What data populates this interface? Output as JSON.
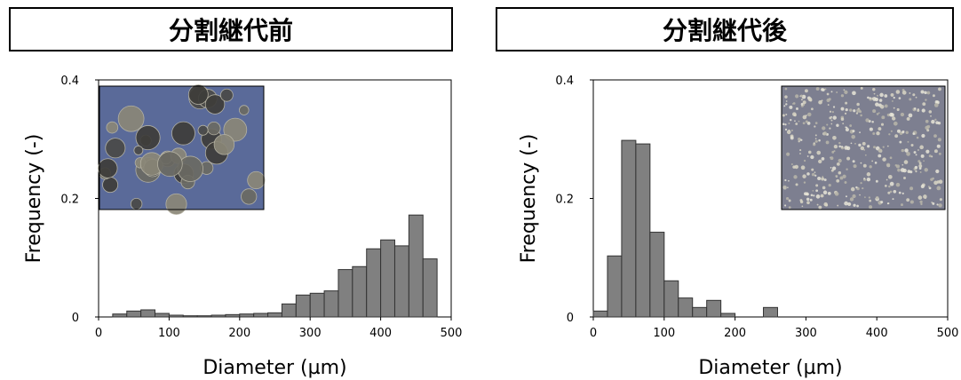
{
  "panels": [
    {
      "title": "分割継代前"
    },
    {
      "title": "分割継代後"
    }
  ],
  "colors": {
    "bar_fill": "#808080",
    "bar_stroke": "#333333",
    "photo_before": "#5a6a99",
    "photo_after": "#7d7f90"
  },
  "chart_data": [
    {
      "type": "bar",
      "title": "分割継代前",
      "xlabel": "Diameter (µm)",
      "ylabel": "Frequency (-)",
      "xlim": [
        0,
        500
      ],
      "ylim": [
        0,
        0.4
      ],
      "xticks": [
        "0",
        "100",
        "200",
        "300",
        "400",
        "500"
      ],
      "yticks": [
        "0",
        "0.2",
        "0.4"
      ],
      "bin_width": 20,
      "x": [
        20,
        40,
        60,
        80,
        100,
        120,
        140,
        160,
        180,
        200,
        220,
        240,
        260,
        280,
        300,
        320,
        340,
        360,
        380,
        400,
        420,
        440,
        460
      ],
      "values": [
        0.005,
        0.01,
        0.012,
        0.006,
        0.003,
        0.002,
        0.002,
        0.003,
        0.004,
        0.005,
        0.006,
        0.007,
        0.022,
        0.037,
        0.04,
        0.044,
        0.08,
        0.085,
        0.115,
        0.13,
        0.12,
        0.172,
        0.098
      ],
      "inset_image": "spheroid micrograph"
    },
    {
      "type": "bar",
      "title": "分割継代後",
      "xlabel": "Diameter (µm)",
      "ylabel": "Frequency (-)",
      "xlim": [
        0,
        500
      ],
      "ylim": [
        0,
        0.4
      ],
      "xticks": [
        "0",
        "100",
        "200",
        "300",
        "400",
        "500"
      ],
      "yticks": [
        "0",
        "0.2",
        "0.4"
      ],
      "bin_width": 20,
      "x": [
        0,
        20,
        40,
        60,
        80,
        100,
        120,
        140,
        160,
        180,
        240
      ],
      "values": [
        0.01,
        0.103,
        0.298,
        0.292,
        0.143,
        0.061,
        0.032,
        0.016,
        0.028,
        0.006,
        0.016
      ],
      "inset_image": "dispersed cell micrograph"
    }
  ]
}
